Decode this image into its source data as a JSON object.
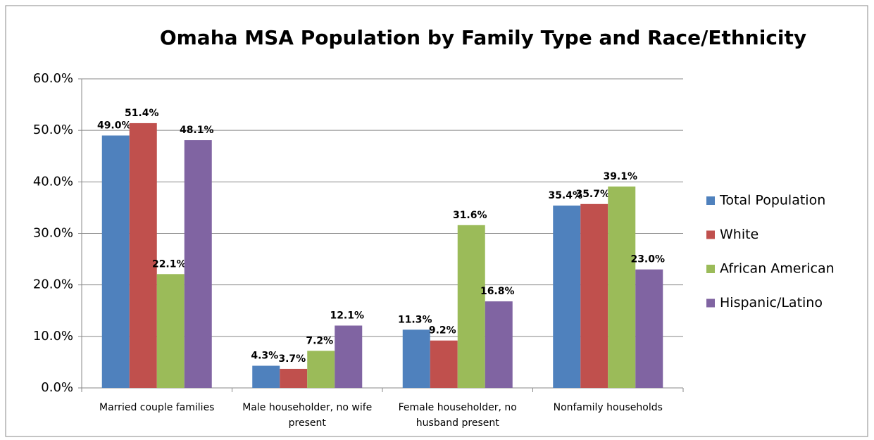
{
  "chart_data": {
    "type": "bar",
    "title": "Omaha MSA Population by Family Type and Race/Ethnicity",
    "categories": [
      "Married couple families",
      "Male householder, no wife present",
      "Female householder, no husband present",
      "Nonfamily households"
    ],
    "series": [
      {
        "name": "Total Population",
        "color": "#4f81bd",
        "values": [
          49.0,
          4.3,
          11.3,
          35.4
        ],
        "value_labels": [
          "49.0%",
          "4.3%",
          "11.3%",
          "35.4%"
        ]
      },
      {
        "name": "White",
        "color": "#c0504d",
        "values": [
          51.4,
          3.7,
          9.2,
          35.7
        ],
        "value_labels": [
          "51.4%",
          "3.7%",
          "9.2%",
          "35.7%"
        ]
      },
      {
        "name": "African American",
        "color": "#9bbb59",
        "values": [
          22.1,
          7.2,
          31.6,
          39.1
        ],
        "value_labels": [
          "22.1%",
          "7.2%",
          "31.6%",
          "39.1%"
        ]
      },
      {
        "name": "Hispanic/Latino",
        "color": "#8064a2",
        "values": [
          48.1,
          12.1,
          16.8,
          23.0
        ],
        "value_labels": [
          "48.1%",
          "12.1%",
          "16.8%",
          "23.0%"
        ]
      }
    ],
    "ylim": [
      0,
      60
    ],
    "yticks": [
      {
        "value": 0,
        "label": "0.0%"
      },
      {
        "value": 10,
        "label": "10.0%"
      },
      {
        "value": 20,
        "label": "20.0%"
      },
      {
        "value": 30,
        "label": "30.0%"
      },
      {
        "value": 40,
        "label": "40.0%"
      },
      {
        "value": 50,
        "label": "50.0%"
      },
      {
        "value": 60,
        "label": "60.0%"
      }
    ],
    "grid": true,
    "legend": "right"
  }
}
